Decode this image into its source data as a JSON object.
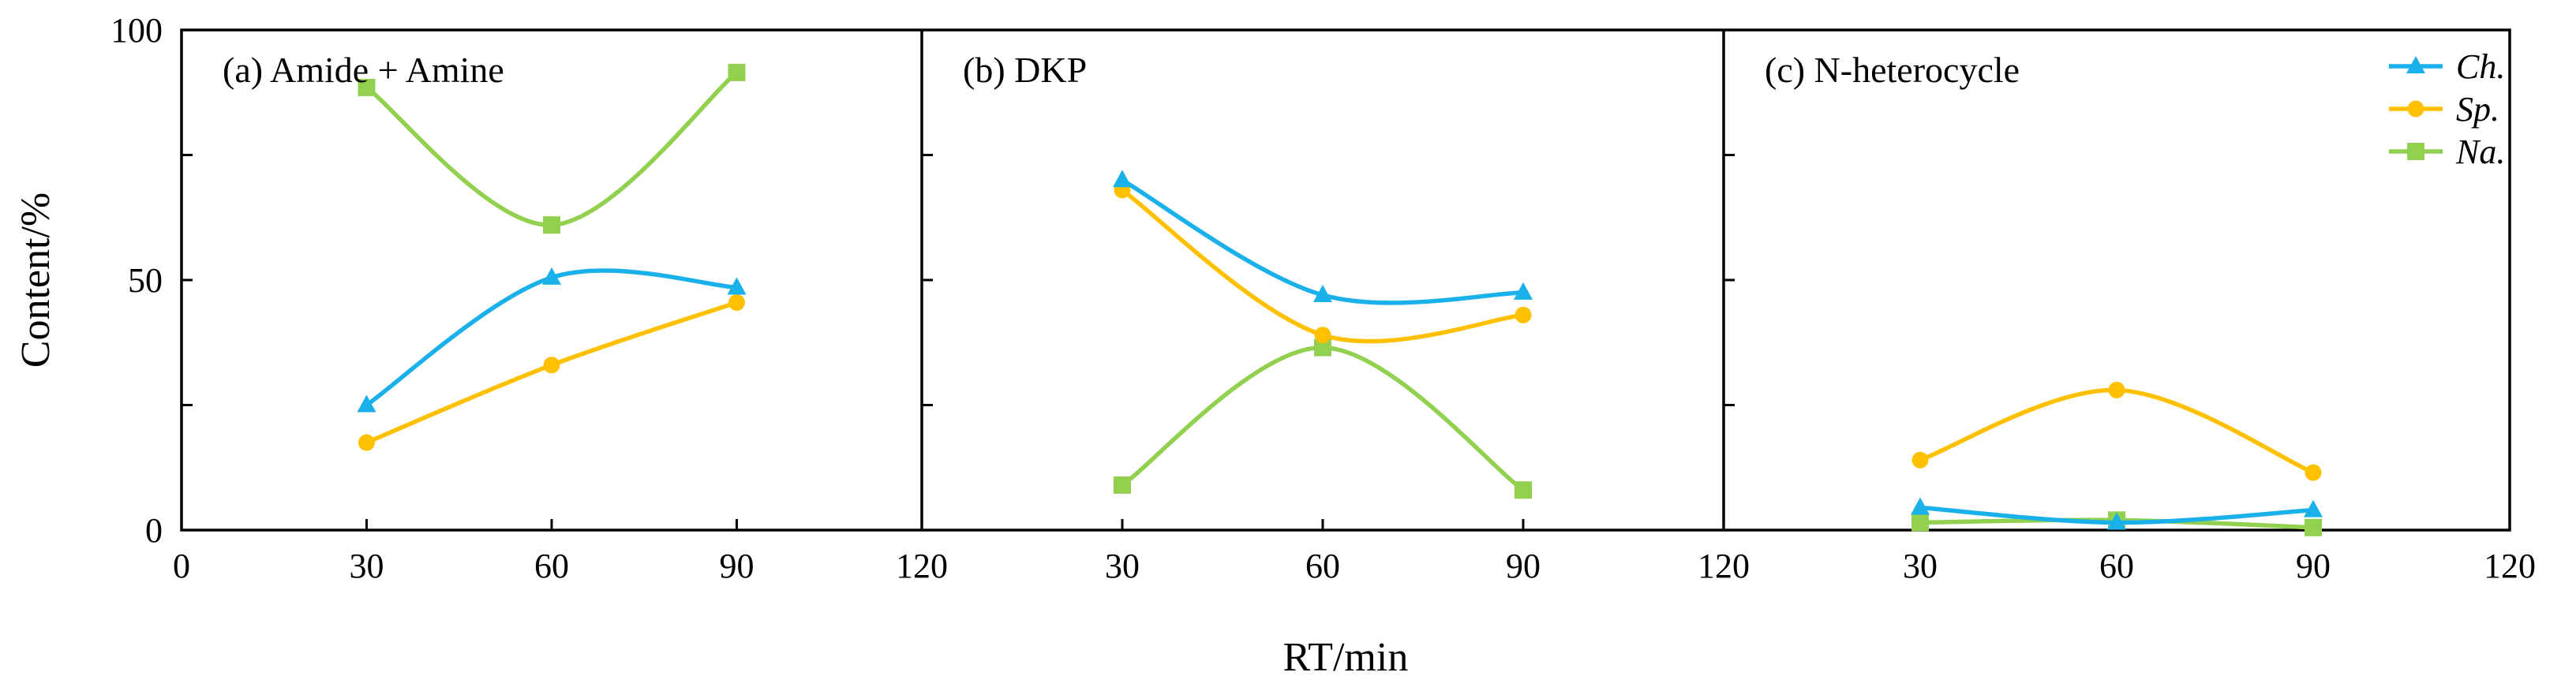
{
  "chart_data": {
    "type": "line",
    "xlabel": "RT/min",
    "ylabel": "Content/%",
    "ylim": [
      0,
      100
    ],
    "yticks": [
      "0",
      "50",
      "100"
    ],
    "x_tick_values": [
      0,
      30,
      60,
      90,
      120
    ],
    "x_tick_labels": [
      [
        "0",
        "30",
        "60",
        "90",
        ""
      ],
      [
        "",
        "30",
        "60",
        "90",
        ""
      ],
      [
        "",
        "30",
        "60",
        "90",
        "120"
      ]
    ],
    "shared_x_boundary_labels": [
      "120",
      "120"
    ],
    "x": [
      30,
      60,
      90
    ],
    "legend": {
      "position": "top-right of panel (c)",
      "entries": [
        {
          "name": "Ch.",
          "color": "#1AB0EA",
          "marker": "triangle"
        },
        {
          "name": "Sp.",
          "color": "#FFC000",
          "marker": "circle"
        },
        {
          "name": "Na.",
          "color": "#92D050",
          "marker": "square"
        }
      ]
    },
    "panels": [
      {
        "label": "(a) Amide + Amine",
        "series": [
          {
            "name": "Ch.",
            "values": [
              25,
              50.5,
              48.5
            ]
          },
          {
            "name": "Sp.",
            "values": [
              17.5,
              33,
              45.5
            ]
          },
          {
            "name": "Na.",
            "values": [
              88.5,
              61,
              91.5
            ]
          }
        ]
      },
      {
        "label": "(b) DKP",
        "series": [
          {
            "name": "Ch.",
            "values": [
              70,
              47,
              47.5
            ]
          },
          {
            "name": "Sp.",
            "values": [
              68,
              39,
              43
            ]
          },
          {
            "name": "Na.",
            "values": [
              9,
              36.5,
              8
            ]
          }
        ]
      },
      {
        "label": "(c) N-heterocycle",
        "series": [
          {
            "name": "Ch.",
            "values": [
              4.5,
              1.5,
              4
            ]
          },
          {
            "name": "Sp.",
            "values": [
              14,
              28,
              11.5
            ]
          },
          {
            "name": "Na.",
            "values": [
              1.5,
              2,
              0.5
            ]
          }
        ]
      }
    ]
  }
}
